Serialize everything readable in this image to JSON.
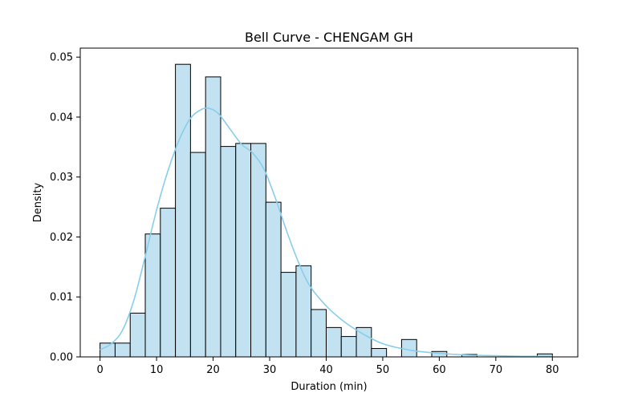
{
  "chart_data": {
    "type": "bar",
    "title": "Bell Curve - CHENGAM GH",
    "xlabel": "Duration (min)",
    "ylabel": "Density",
    "xlim": [
      -3.5,
      84.5
    ],
    "ylim": [
      0,
      0.0515
    ],
    "xticks": [
      0,
      10,
      20,
      30,
      40,
      50,
      60,
      70,
      80
    ],
    "yticks": [
      0.0,
      0.01,
      0.02,
      0.03,
      0.04,
      0.05
    ],
    "ytick_labels": [
      "0.00",
      "0.01",
      "0.02",
      "0.03",
      "0.04",
      "0.05"
    ],
    "bin_width": 2.667,
    "bins": [
      {
        "x0": 0.0,
        "value": 0.0023
      },
      {
        "x0": 2.667,
        "value": 0.0023
      },
      {
        "x0": 5.333,
        "value": 0.0073
      },
      {
        "x0": 8.0,
        "value": 0.0205
      },
      {
        "x0": 10.667,
        "value": 0.0248
      },
      {
        "x0": 13.333,
        "value": 0.0488
      },
      {
        "x0": 16.0,
        "value": 0.0341
      },
      {
        "x0": 18.667,
        "value": 0.0467
      },
      {
        "x0": 21.333,
        "value": 0.0351
      },
      {
        "x0": 24.0,
        "value": 0.0356
      },
      {
        "x0": 26.667,
        "value": 0.0356
      },
      {
        "x0": 29.333,
        "value": 0.0258
      },
      {
        "x0": 32.0,
        "value": 0.0141
      },
      {
        "x0": 34.667,
        "value": 0.0152
      },
      {
        "x0": 37.333,
        "value": 0.0079
      },
      {
        "x0": 40.0,
        "value": 0.0049
      },
      {
        "x0": 42.667,
        "value": 0.0034
      },
      {
        "x0": 45.333,
        "value": 0.0049
      },
      {
        "x0": 48.0,
        "value": 0.0014
      },
      {
        "x0": 50.667,
        "value": 0.0
      },
      {
        "x0": 53.333,
        "value": 0.0029
      },
      {
        "x0": 56.0,
        "value": 0.0
      },
      {
        "x0": 58.667,
        "value": 0.0009
      },
      {
        "x0": 61.333,
        "value": 0.0
      },
      {
        "x0": 64.0,
        "value": 0.0004
      },
      {
        "x0": 66.667,
        "value": 0.0
      },
      {
        "x0": 69.333,
        "value": 0.0
      },
      {
        "x0": 72.0,
        "value": 0.0
      },
      {
        "x0": 74.667,
        "value": 0.0
      },
      {
        "x0": 77.333,
        "value": 0.0005
      }
    ],
    "kde": {
      "x": [
        0,
        2,
        4,
        6,
        8,
        10,
        12,
        14,
        16,
        18,
        19.5,
        21,
        23,
        25,
        27,
        29,
        31,
        33,
        35,
        37,
        40,
        43,
        46,
        50,
        55,
        60,
        65,
        70,
        75,
        80
      ],
      "y": [
        0.0012,
        0.0022,
        0.0045,
        0.0095,
        0.0168,
        0.0245,
        0.031,
        0.0362,
        0.0398,
        0.0413,
        0.0414,
        0.0405,
        0.038,
        0.0355,
        0.034,
        0.0313,
        0.0265,
        0.021,
        0.016,
        0.012,
        0.0085,
        0.006,
        0.0041,
        0.0022,
        0.0011,
        0.0006,
        0.0003,
        0.0002,
        0.0001,
        0.0001
      ]
    },
    "colors": {
      "bar_fill": "#c3e2f1",
      "bar_edge": "#000000",
      "kde_line": "#87ceeb"
    },
    "grid": false,
    "legend": "none"
  }
}
